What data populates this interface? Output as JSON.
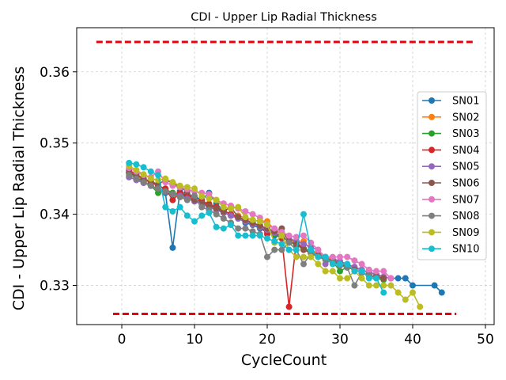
{
  "chart_data": {
    "type": "line",
    "title": "CDI - Upper Lip Radial Thickness",
    "xlabel": "CycleCount",
    "ylabel": "CDI - Upper Lip Radial Thickness",
    "xlim": [
      -6.2,
      51.2
    ],
    "ylim": [
      0.3245,
      0.3662
    ],
    "xticks": [
      0,
      10,
      20,
      30,
      40,
      50
    ],
    "yticks": [
      0.33,
      0.34,
      0.35,
      0.36
    ],
    "xtick_labels": [
      "0",
      "10",
      "20",
      "30",
      "40",
      "50"
    ],
    "ytick_labels": [
      "0.33",
      "0.34",
      "0.35",
      "0.36"
    ],
    "grid": true,
    "legend_position": "right",
    "limit_lines": [
      {
        "y": 0.3642,
        "x_start": -3.5,
        "x_end": 48.5,
        "color": "#e8000b",
        "style": "dashed"
      },
      {
        "y": 0.326,
        "x_start": -1.2,
        "x_end": 46.0,
        "color": "#e8000b",
        "style": "dashed"
      }
    ],
    "series": [
      {
        "name": "SN01",
        "color": "#1f77b4",
        "x": [
          1,
          2,
          3,
          4,
          5,
          6,
          7,
          8,
          9,
          10,
          11,
          12,
          13,
          14,
          15,
          16,
          17,
          18,
          19,
          20,
          21,
          22,
          23,
          24,
          25,
          26,
          27,
          28,
          29,
          30,
          31,
          32,
          33,
          34,
          35,
          36,
          37,
          38,
          39,
          40,
          43,
          44
        ],
        "y": [
          0.3458,
          0.3452,
          0.3445,
          0.344,
          0.3435,
          0.343,
          0.3353,
          0.3432,
          0.3428,
          0.3425,
          0.342,
          0.343,
          0.3415,
          0.3405,
          0.34,
          0.3395,
          0.3388,
          0.3385,
          0.338,
          0.3375,
          0.337,
          0.3368,
          0.3362,
          0.3358,
          0.3352,
          0.3348,
          0.3344,
          0.334,
          0.3336,
          0.3332,
          0.3328,
          0.3325,
          0.3322,
          0.3318,
          0.3315,
          0.3312,
          0.331,
          0.331,
          0.331,
          0.33,
          0.33,
          0.329
        ]
      },
      {
        "name": "SN02",
        "color": "#ff7f0e",
        "x": [
          1,
          2,
          3,
          4,
          5,
          6,
          7,
          8,
          9,
          10,
          11,
          12,
          13,
          14,
          15,
          16,
          17,
          18,
          19,
          20,
          21,
          22,
          23,
          24,
          25,
          26,
          27,
          28,
          29,
          30,
          31,
          32,
          33,
          34,
          35,
          36
        ],
        "y": [
          0.346,
          0.3455,
          0.3448,
          0.3444,
          0.344,
          0.3435,
          0.343,
          0.3428,
          0.3425,
          0.342,
          0.3418,
          0.3415,
          0.341,
          0.3405,
          0.34,
          0.3398,
          0.3395,
          0.3392,
          0.339,
          0.339,
          0.3378,
          0.3372,
          0.3365,
          0.336,
          0.3362,
          0.335,
          0.3345,
          0.334,
          0.3335,
          0.333,
          0.3328,
          0.3325,
          0.3322,
          0.3318,
          0.3315,
          0.331
        ]
      },
      {
        "name": "SN03",
        "color": "#2ca02c",
        "x": [
          1,
          2,
          3,
          4,
          5,
          6,
          7,
          8,
          9,
          10,
          11,
          12,
          13,
          14,
          15,
          16,
          17,
          18,
          19,
          20,
          21,
          22,
          23,
          24,
          25,
          26,
          27,
          28,
          29,
          30,
          31,
          32,
          33,
          34,
          35,
          36
        ],
        "y": [
          0.3458,
          0.3452,
          0.3446,
          0.344,
          0.343,
          0.3435,
          0.343,
          0.3428,
          0.3424,
          0.342,
          0.3415,
          0.3412,
          0.3408,
          0.3402,
          0.3398,
          0.3394,
          0.339,
          0.3386,
          0.3382,
          0.3378,
          0.3372,
          0.3368,
          0.3362,
          0.3356,
          0.3352,
          0.3348,
          0.3342,
          0.3338,
          0.3334,
          0.332,
          0.3326,
          0.3322,
          0.3318,
          0.3314,
          0.331,
          0.3308
        ]
      },
      {
        "name": "SN04",
        "color": "#d62728",
        "x": [
          1,
          2,
          3,
          4,
          5,
          6,
          7,
          8,
          9,
          10,
          11,
          12,
          13,
          14,
          15,
          16,
          17,
          18,
          19,
          20,
          21,
          22,
          23,
          24,
          25,
          26,
          27,
          28,
          29,
          30,
          31,
          32,
          33,
          34,
          35,
          36
        ],
        "y": [
          0.3462,
          0.3456,
          0.345,
          0.3445,
          0.344,
          0.3436,
          0.342,
          0.343,
          0.3426,
          0.3422,
          0.3418,
          0.3414,
          0.341,
          0.3405,
          0.34,
          0.3396,
          0.3392,
          0.3388,
          0.3384,
          0.3372,
          0.3376,
          0.3366,
          0.327,
          0.3362,
          0.335,
          0.3346,
          0.3342,
          0.3338,
          0.3334,
          0.333,
          0.3326,
          0.3322,
          0.3318,
          0.3314,
          0.3312,
          0.331
        ]
      },
      {
        "name": "SN05",
        "color": "#9467bd",
        "x": [
          1,
          2,
          3,
          4,
          5,
          6,
          7,
          8,
          9,
          10,
          11,
          12,
          13,
          14,
          15,
          16,
          17,
          18,
          19,
          20,
          21,
          22,
          23,
          24,
          25,
          26,
          27,
          28,
          29,
          30,
          31,
          32,
          33,
          34,
          35,
          36,
          37
        ],
        "y": [
          0.3452,
          0.3448,
          0.3444,
          0.344,
          0.3436,
          0.3432,
          0.3428,
          0.3426,
          0.3422,
          0.3418,
          0.3414,
          0.341,
          0.3406,
          0.3402,
          0.3398,
          0.3394,
          0.339,
          0.3386,
          0.3382,
          0.3378,
          0.3374,
          0.337,
          0.3366,
          0.3362,
          0.3358,
          0.3354,
          0.335,
          0.333,
          0.3338,
          0.3334,
          0.333,
          0.3326,
          0.3322,
          0.3318,
          0.3316,
          0.3312,
          0.331
        ]
      },
      {
        "name": "SN06",
        "color": "#8c564b",
        "x": [
          1,
          2,
          3,
          4,
          5,
          6,
          7,
          8,
          9,
          10,
          11,
          12,
          13,
          14,
          15,
          16,
          17,
          18,
          19,
          20,
          21,
          22,
          23,
          24,
          25,
          26,
          27,
          28,
          29,
          30,
          31,
          32,
          33,
          34,
          35,
          36
        ],
        "y": [
          0.3458,
          0.3455,
          0.345,
          0.3446,
          0.3442,
          0.3448,
          0.3444,
          0.3438,
          0.3432,
          0.342,
          0.3416,
          0.3412,
          0.3408,
          0.3404,
          0.341,
          0.3396,
          0.3392,
          0.3388,
          0.3384,
          0.338,
          0.3376,
          0.338,
          0.3362,
          0.3358,
          0.335,
          0.3346,
          0.3342,
          0.3338,
          0.3334,
          0.333,
          0.3326,
          0.3322,
          0.3318,
          0.3314,
          0.3312,
          0.331
        ]
      },
      {
        "name": "SN07",
        "color": "#e377c2",
        "x": [
          1,
          2,
          3,
          4,
          5,
          6,
          7,
          8,
          9,
          10,
          11,
          12,
          13,
          14,
          15,
          16,
          17,
          18,
          19,
          20,
          21,
          22,
          23,
          24,
          25,
          26,
          27,
          28,
          29,
          30,
          31,
          32,
          33,
          34,
          35,
          36,
          37
        ],
        "y": [
          0.3465,
          0.346,
          0.3455,
          0.3452,
          0.346,
          0.3445,
          0.344,
          0.3438,
          0.3435,
          0.3432,
          0.343,
          0.3428,
          0.342,
          0.3415,
          0.3412,
          0.3408,
          0.3404,
          0.34,
          0.3395,
          0.3385,
          0.338,
          0.3375,
          0.337,
          0.3368,
          0.337,
          0.336,
          0.335,
          0.334,
          0.334,
          0.334,
          0.334,
          0.3335,
          0.333,
          0.3322,
          0.332,
          0.332,
          0.331
        ]
      },
      {
        "name": "SN08",
        "color": "#7f7f7f",
        "x": [
          1,
          2,
          3,
          4,
          5,
          6,
          7,
          8,
          9,
          10,
          11,
          12,
          13,
          14,
          15,
          16,
          17,
          18,
          19,
          20,
          21,
          22,
          23,
          24,
          25,
          26,
          27,
          28,
          29,
          30,
          31,
          32,
          33,
          34,
          35
        ],
        "y": [
          0.3455,
          0.345,
          0.3445,
          0.344,
          0.3436,
          0.3432,
          0.3428,
          0.3424,
          0.342,
          0.3426,
          0.341,
          0.3406,
          0.34,
          0.3394,
          0.3388,
          0.338,
          0.338,
          0.3376,
          0.3372,
          0.334,
          0.335,
          0.335,
          0.336,
          0.335,
          0.333,
          0.3345,
          0.334,
          0.3336,
          0.3332,
          0.3328,
          0.3325,
          0.33,
          0.3318,
          0.3314,
          0.331
        ]
      },
      {
        "name": "SN09",
        "color": "#bcbd22",
        "x": [
          1,
          2,
          3,
          4,
          5,
          6,
          7,
          8,
          9,
          10,
          11,
          12,
          13,
          14,
          15,
          16,
          17,
          18,
          19,
          20,
          21,
          22,
          23,
          24,
          25,
          26,
          27,
          28,
          29,
          30,
          31,
          32,
          33,
          34,
          35,
          36,
          37,
          38,
          39,
          40,
          41
        ],
        "y": [
          0.3468,
          0.3462,
          0.3456,
          0.345,
          0.3448,
          0.345,
          0.3445,
          0.344,
          0.3438,
          0.3436,
          0.3425,
          0.3422,
          0.342,
          0.341,
          0.3408,
          0.341,
          0.3396,
          0.3392,
          0.339,
          0.3386,
          0.336,
          0.337,
          0.335,
          0.334,
          0.334,
          0.334,
          0.333,
          0.332,
          0.332,
          0.331,
          0.331,
          0.332,
          0.331,
          0.33,
          0.33,
          0.33,
          0.33,
          0.329,
          0.328,
          0.329,
          0.327
        ]
      },
      {
        "name": "SN10",
        "color": "#17becf",
        "x": [
          1,
          2,
          3,
          4,
          5,
          6,
          7,
          8,
          9,
          10,
          11,
          12,
          13,
          14,
          15,
          16,
          17,
          18,
          19,
          20,
          21,
          22,
          23,
          24,
          25,
          26,
          27,
          28,
          29,
          30,
          31,
          32,
          33,
          34,
          35,
          36
        ],
        "y": [
          0.3472,
          0.347,
          0.3466,
          0.346,
          0.3455,
          0.341,
          0.3404,
          0.341,
          0.3398,
          0.339,
          0.3398,
          0.3402,
          0.3382,
          0.338,
          0.3385,
          0.337,
          0.337,
          0.337,
          0.337,
          0.3366,
          0.3362,
          0.3358,
          0.335,
          0.335,
          0.34,
          0.335,
          0.334,
          0.334,
          0.333,
          0.333,
          0.333,
          0.332,
          0.332,
          0.331,
          0.331,
          0.329
        ]
      }
    ]
  }
}
